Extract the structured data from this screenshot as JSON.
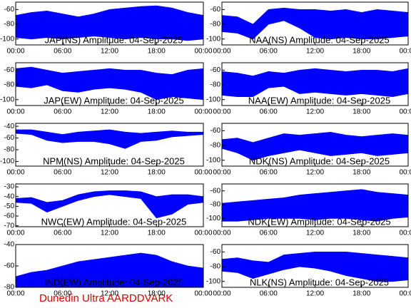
{
  "chart_data": [
    {
      "type": "band",
      "title": "JAP(NS) Amplitude: 04-Sep-2025",
      "color": "#0000ff",
      "x": [
        0,
        2,
        4,
        6,
        8,
        10,
        12,
        14,
        16,
        18,
        20,
        22,
        24
      ],
      "high": [
        -68,
        -64,
        -62,
        -66,
        -70,
        -66,
        -60,
        -58,
        -56,
        -55,
        -58,
        -64,
        -68
      ],
      "low": [
        -98,
        -100,
        -98,
        -100,
        -98,
        -96,
        -98,
        -100,
        -98,
        -100,
        -100,
        -102,
        -100
      ],
      "xlim": [
        0,
        24
      ],
      "xticks": [
        {
          "value": 0,
          "label": "00:00"
        },
        {
          "value": 6,
          "label": "06:00"
        },
        {
          "value": 12,
          "label": "12:00"
        },
        {
          "value": 18,
          "label": "18:00"
        },
        {
          "value": 24,
          "label": "00:00"
        }
      ],
      "ylim": [
        -108,
        -50
      ],
      "yticks": [
        -100,
        -80,
        -60
      ]
    },
    {
      "type": "band",
      "title": "NAA(NS) Amplitude: 04-Sep-2025",
      "color": "#0000ff",
      "x": [
        0,
        2,
        4,
        6,
        8,
        10,
        12,
        14,
        16,
        18,
        20,
        22,
        24
      ],
      "high": [
        -68,
        -70,
        -80,
        -60,
        -58,
        -60,
        -60,
        -62,
        -60,
        -64,
        -60,
        -62,
        -64
      ],
      "low": [
        -90,
        -92,
        -100,
        -80,
        -75,
        -85,
        -98,
        -100,
        -98,
        -100,
        -100,
        -98,
        -96
      ],
      "xlim": [
        0,
        24
      ],
      "xticks": [
        {
          "value": 0,
          "label": "00:00"
        },
        {
          "value": 6,
          "label": "06:00"
        },
        {
          "value": 12,
          "label": "12:00"
        },
        {
          "value": 18,
          "label": "18:00"
        },
        {
          "value": 24,
          "label": "00:00"
        }
      ],
      "ylim": [
        -108,
        -50
      ],
      "yticks": [
        -100,
        -80,
        -60
      ]
    },
    {
      "type": "band",
      "title": "JAP(EW) Amplitude: 04-Sep-2025",
      "color": "#0000ff",
      "x": [
        0,
        2,
        4,
        6,
        8,
        10,
        12,
        14,
        16,
        18,
        20,
        22,
        24
      ],
      "high": [
        -58,
        -56,
        -60,
        -64,
        -62,
        -60,
        -58,
        -60,
        -60,
        -64,
        -66,
        -60,
        -58
      ],
      "low": [
        -82,
        -84,
        -80,
        -88,
        -90,
        -86,
        -84,
        -86,
        -90,
        -100,
        -96,
        -98,
        -100
      ],
      "xlim": [
        0,
        24
      ],
      "xticks": [
        {
          "value": 0,
          "label": "00:00"
        },
        {
          "value": 6,
          "label": "06:00"
        },
        {
          "value": 12,
          "label": "12:00"
        },
        {
          "value": 18,
          "label": "18:00"
        },
        {
          "value": 24,
          "label": "00:00"
        }
      ],
      "ylim": [
        -108,
        -50
      ],
      "yticks": [
        -100,
        -80,
        -60
      ]
    },
    {
      "type": "band",
      "title": "NAA(EW) Amplitude: 04-Sep-2025",
      "color": "#0000ff",
      "x": [
        0,
        2,
        4,
        6,
        8,
        10,
        12,
        14,
        16,
        18,
        20,
        22,
        24
      ],
      "high": [
        -62,
        -64,
        -68,
        -62,
        -64,
        -60,
        -58,
        -60,
        -62,
        -60,
        -60,
        -62,
        -58
      ],
      "low": [
        -94,
        -96,
        -96,
        -84,
        -82,
        -92,
        -90,
        -92,
        -94,
        -92,
        -94,
        -96,
        -92
      ],
      "xlim": [
        0,
        24
      ],
      "xticks": [
        {
          "value": 0,
          "label": "00:00"
        },
        {
          "value": 6,
          "label": "06:00"
        },
        {
          "value": 12,
          "label": "12:00"
        },
        {
          "value": 18,
          "label": "18:00"
        },
        {
          "value": 24,
          "label": "00:00"
        }
      ],
      "ylim": [
        -108,
        -50
      ],
      "yticks": [
        -100,
        -80,
        -60
      ]
    },
    {
      "type": "band",
      "title": "NPM(NS) Amplitude: 04-Sep-2025",
      "color": "#0000ff",
      "x": [
        0,
        2,
        4,
        6,
        8,
        10,
        12,
        14,
        16,
        18,
        20,
        22,
        24
      ],
      "high": [
        -46,
        -46,
        -50,
        -54,
        -50,
        -48,
        -46,
        -50,
        -52,
        -50,
        -48,
        -50,
        -50
      ],
      "low": [
        -52,
        -54,
        -64,
        -68,
        -66,
        -66,
        -70,
        -78,
        -66,
        -64,
        -58,
        -56,
        -54
      ],
      "xlim": [
        0,
        24
      ],
      "xticks": [
        {
          "value": 0,
          "label": "00:00"
        },
        {
          "value": 6,
          "label": "06:00"
        },
        {
          "value": 12,
          "label": "12:00"
        },
        {
          "value": 18,
          "label": "18:00"
        },
        {
          "value": 24,
          "label": "00:00"
        }
      ],
      "ylim": [
        -108,
        -35
      ],
      "yticks": [
        -100,
        -80,
        -60,
        -40
      ]
    },
    {
      "type": "band",
      "title": "NDK(NS) Amplitude: 04-Sep-2025",
      "color": "#0000ff",
      "x": [
        0,
        2,
        4,
        6,
        8,
        10,
        12,
        14,
        16,
        18,
        20,
        22,
        24
      ],
      "high": [
        -72,
        -70,
        -76,
        -70,
        -64,
        -66,
        -64,
        -62,
        -66,
        -68,
        -66,
        -64,
        -66
      ],
      "low": [
        -84,
        -90,
        -100,
        -94,
        -90,
        -86,
        -90,
        -94,
        -92,
        -90,
        -94,
        -92,
        -90
      ],
      "xlim": [
        0,
        24
      ],
      "xticks": [
        {
          "value": 0,
          "label": "00:00"
        },
        {
          "value": 6,
          "label": "06:00"
        },
        {
          "value": 12,
          "label": "12:00"
        },
        {
          "value": 18,
          "label": "18:00"
        },
        {
          "value": 24,
          "label": "00:00"
        }
      ],
      "ylim": [
        -108,
        -50
      ],
      "yticks": [
        -100,
        -80,
        -60
      ]
    },
    {
      "type": "band",
      "title": "NWC(EW) Amplitude: 04-Sep-2025",
      "color": "#0000ff",
      "x": [
        0,
        2,
        4,
        6,
        8,
        10,
        12,
        14,
        16,
        18,
        20,
        22,
        24
      ],
      "high": [
        -42,
        -41,
        -46,
        -44,
        -38,
        -35,
        -34,
        -34,
        -35,
        -40,
        -38,
        -38,
        -40
      ],
      "low": [
        -46,
        -47,
        -56,
        -50,
        -44,
        -40,
        -38,
        -40,
        -42,
        -62,
        -58,
        -48,
        -46
      ],
      "xlim": [
        0,
        24
      ],
      "xticks": [
        {
          "value": 0,
          "label": "00:00"
        },
        {
          "value": 6,
          "label": "06:00"
        },
        {
          "value": 12,
          "label": "12:00"
        },
        {
          "value": 18,
          "label": "18:00"
        },
        {
          "value": 24,
          "label": "00:00"
        }
      ],
      "ylim": [
        -71,
        -27
      ],
      "yticks": [
        -70,
        -60,
        -50,
        -40,
        -30
      ]
    },
    {
      "type": "band",
      "title": "NDK(EW) Amplitude: 04-Sep-2025",
      "color": "#0000ff",
      "x": [
        0,
        2,
        4,
        6,
        8,
        10,
        12,
        14,
        16,
        18,
        20,
        22,
        24
      ],
      "high": [
        -78,
        -76,
        -74,
        -72,
        -70,
        -66,
        -64,
        -62,
        -60,
        -58,
        -62,
        -64,
        -66
      ],
      "low": [
        -104,
        -104,
        -102,
        -100,
        -100,
        -100,
        -102,
        -100,
        -100,
        -102,
        -104,
        -100,
        -98
      ],
      "xlim": [
        0,
        24
      ],
      "xticks": [
        {
          "value": 0,
          "label": "00:00"
        },
        {
          "value": 6,
          "label": "06:00"
        },
        {
          "value": 12,
          "label": "12:00"
        },
        {
          "value": 18,
          "label": "18:00"
        },
        {
          "value": 24,
          "label": "00:00"
        }
      ],
      "ylim": [
        -112,
        -50
      ],
      "yticks": [
        -100,
        -80,
        -60
      ]
    },
    {
      "type": "band",
      "title": "IND(EW) Amplitude: 04-Sep-2025",
      "color": "#0000ff",
      "x": [
        0,
        2,
        4,
        6,
        8,
        10,
        12,
        14,
        16,
        18,
        20,
        22,
        24
      ],
      "high": [
        -70,
        -66,
        -64,
        -60,
        -56,
        -54,
        -52,
        -50,
        -48,
        -50,
        -56,
        -60,
        -62
      ],
      "low": [
        -80,
        -80,
        -80,
        -80,
        -80,
        -80,
        -80,
        -80,
        -80,
        -80,
        -80,
        -80,
        -80
      ],
      "xlim": [
        0,
        24
      ],
      "xticks": [
        {
          "value": 0,
          "label": "00:00"
        },
        {
          "value": 6,
          "label": "06:00"
        },
        {
          "value": 12,
          "label": "12:00"
        },
        {
          "value": 18,
          "label": "18:00"
        },
        {
          "value": 24,
          "label": "00:00"
        }
      ],
      "ylim": [
        -80,
        -40
      ],
      "yticks": [
        -80,
        -60,
        -40
      ]
    },
    {
      "type": "band",
      "title": "NLK(NS) Amplitude: 04-Sep-2025",
      "color": "#0000ff",
      "x": [
        0,
        2,
        4,
        6,
        8,
        10,
        12,
        14,
        16,
        18,
        20,
        22,
        24
      ],
      "high": [
        -70,
        -68,
        -72,
        -74,
        -64,
        -62,
        -60,
        -60,
        -60,
        -62,
        -64,
        -66,
        -68
      ],
      "low": [
        -86,
        -88,
        -96,
        -90,
        -84,
        -80,
        -82,
        -86,
        -92,
        -96,
        -100,
        -100,
        -98
      ],
      "xlim": [
        0,
        24
      ],
      "xticks": [
        {
          "value": 0,
          "label": "00:00"
        },
        {
          "value": 6,
          "label": "06:00"
        },
        {
          "value": 12,
          "label": "12:00"
        },
        {
          "value": 18,
          "label": "18:00"
        },
        {
          "value": 24,
          "label": "00:00"
        }
      ],
      "ylim": [
        -108,
        -50
      ],
      "yticks": [
        -100,
        -80,
        -60
      ]
    }
  ],
  "footer": "Dunedin Ultra AARDDVARK"
}
